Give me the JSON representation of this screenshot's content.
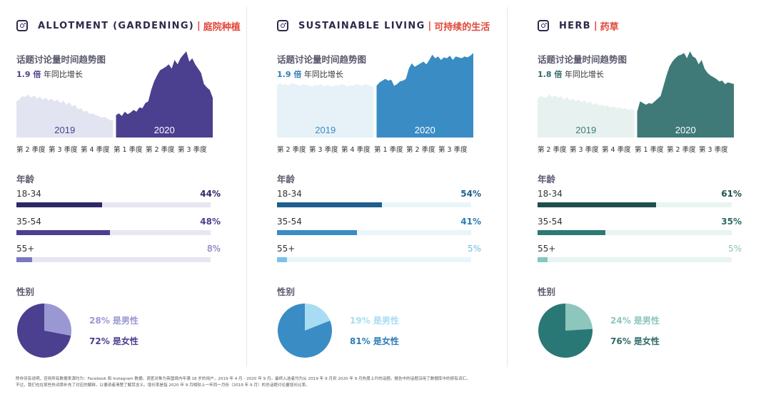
{
  "common": {
    "trend_title": "话题讨论量时间趋势图",
    "growth_suffix": "年同比增长",
    "year_2019": "2019",
    "year_2020": "2020",
    "quarters": [
      "第 2 季度",
      "第 3 季度",
      "第 4 季度",
      "第 1 季度",
      "第 2 季度",
      "第 3 季度"
    ],
    "age_title": "年龄",
    "gender_title": "性别"
  },
  "panels": [
    {
      "title_en": "ALLOTMENT (GARDENING)",
      "separator": "|",
      "title_cn": "庭院种植",
      "growth_value": "1.9 倍",
      "ages": [
        {
          "label": "18-34",
          "pct": "44%",
          "value": 44
        },
        {
          "label": "35-54",
          "pct": "48%",
          "value": 48
        },
        {
          "label": "55+",
          "pct": "8%",
          "value": 8
        }
      ],
      "gender": [
        {
          "label": "28% 是男性",
          "value": 28
        },
        {
          "label": "72% 是女性",
          "value": 72
        }
      ],
      "colors": {
        "area_2019": "#e3e4f1",
        "area_2020": "#4b3f8f",
        "year_2019": "#4b3f8f",
        "year_2020": "#ffffff",
        "growth": "#4b3f8f",
        "bars": [
          "#2e2766",
          "#4b3f8f",
          "#7b78c2"
        ],
        "track": "#e6e7f3",
        "pcts": [
          "#2e2766",
          "#4b3f8f",
          "#6c69b0"
        ],
        "pie_male": "#9a98d3",
        "pie_female": "#4b3f8f",
        "lab_male": "#9a98d3",
        "lab_female": "#4b3f8f"
      }
    },
    {
      "title_en": "SUSTAINABLE LIVING",
      "separator": "|",
      "title_cn": "可持续的生活",
      "growth_value": "1.9 倍",
      "ages": [
        {
          "label": "18-34",
          "pct": "54%",
          "value": 54
        },
        {
          "label": "35-54",
          "pct": "41%",
          "value": 41
        },
        {
          "label": "55+",
          "pct": "5%",
          "value": 5
        }
      ],
      "gender": [
        {
          "label": "19% 是男性",
          "value": 19
        },
        {
          "label": "81% 是女性",
          "value": 81
        }
      ],
      "colors": {
        "area_2019": "#e6f2f8",
        "area_2020": "#3a8cc4",
        "year_2019": "#3a8cc4",
        "year_2020": "#ffffff",
        "growth": "#2d7db5",
        "bars": [
          "#1f5f8d",
          "#3a8cc4",
          "#78c4e8"
        ],
        "track": "#eaf5fa",
        "pcts": [
          "#1f5f8d",
          "#2d7db5",
          "#6cbde3"
        ],
        "pie_male": "#a8dcf2",
        "pie_female": "#3a8cc4",
        "lab_male": "#a8dcf2",
        "lab_female": "#2d7db5"
      }
    },
    {
      "title_en": "HERB",
      "separator": "|",
      "title_cn": "药草",
      "growth_value": "1.8 倍",
      "ages": [
        {
          "label": "18-34",
          "pct": "61%",
          "value": 61
        },
        {
          "label": "35-54",
          "pct": "35%",
          "value": 35
        },
        {
          "label": "55+",
          "pct": "5%",
          "value": 5
        }
      ],
      "gender": [
        {
          "label": "24% 是男性",
          "value": 24
        },
        {
          "label": "76% 是女性",
          "value": 76
        }
      ],
      "colors": {
        "area_2019": "#e7f2f0",
        "area_2020": "#3f7a78",
        "year_2019": "#3f7a78",
        "year_2020": "#ffffff",
        "growth": "#2e6a68",
        "bars": [
          "#1f4f4d",
          "#2e7875",
          "#86c7be"
        ],
        "track": "#e8f4f2",
        "pcts": [
          "#1f4f4d",
          "#2e6a68",
          "#86c7be"
        ],
        "pie_male": "#8cc6bd",
        "pie_female": "#2a7876",
        "lab_male": "#8cc6bd",
        "lab_female": "#2e6a68"
      }
    }
  ],
  "chart_data": [
    {
      "type": "area",
      "title": "ALLOTMENT (GARDENING) | 庭院种植 — 话题讨论量时间趋势图",
      "x_labels": [
        "第 2 季度",
        "第 3 季度",
        "第 4 季度",
        "第 1 季度",
        "第 2 季度",
        "第 3 季度"
      ],
      "series": [
        {
          "name": "2019",
          "values": [
            42,
            44,
            48,
            47,
            50,
            46,
            49,
            45,
            47,
            44,
            46,
            43,
            45,
            42,
            44,
            40,
            43,
            38,
            41,
            36,
            38,
            33,
            34,
            30,
            31,
            27,
            28,
            26,
            25,
            23,
            24,
            22,
            20,
            20
          ]
        },
        {
          "name": "2020",
          "values": [
            26,
            28,
            25,
            30,
            27,
            29,
            32,
            30,
            35,
            34,
            40,
            42,
            55,
            65,
            72,
            78,
            80,
            82,
            85,
            80,
            90,
            85,
            92,
            96,
            100,
            88,
            92,
            85,
            80,
            75,
            62,
            58,
            55,
            46
          ]
        }
      ],
      "ylim": [
        0,
        100
      ]
    },
    {
      "type": "area",
      "title": "SUSTAINABLE LIVING | 可持续的生活 — 话题讨论量时间趋势图",
      "x_labels": [
        "第 2 季度",
        "第 3 季度",
        "第 4 季度",
        "第 1 季度",
        "第 2 季度",
        "第 3 季度"
      ],
      "series": [
        {
          "name": "2019",
          "values": [
            60,
            63,
            61,
            62,
            60,
            63,
            62,
            61,
            60,
            62,
            61,
            60,
            59,
            61,
            60,
            62,
            59,
            61,
            60,
            59,
            61,
            60,
            62,
            61,
            59,
            61,
            60,
            62,
            61,
            60,
            62,
            61,
            60,
            58
          ]
        },
        {
          "name": "2020",
          "values": [
            60,
            64,
            66,
            68,
            66,
            67,
            60,
            62,
            65,
            66,
            68,
            80,
            86,
            82,
            84,
            86,
            88,
            85,
            90,
            96,
            92,
            94,
            90,
            93,
            92,
            95,
            90,
            94,
            93,
            92,
            94,
            93,
            95,
            98
          ]
        }
      ],
      "ylim": [
        0,
        100
      ]
    },
    {
      "type": "area",
      "title": "HERB | 药草 — 话题讨论量时间趋势图",
      "x_labels": [
        "第 2 季度",
        "第 3 季度",
        "第 4 季度",
        "第 1 季度",
        "第 2 季度",
        "第 3 季度"
      ],
      "series": [
        {
          "name": "2019",
          "values": [
            45,
            48,
            47,
            46,
            50,
            47,
            49,
            46,
            48,
            44,
            47,
            43,
            45,
            42,
            44,
            41,
            43,
            40,
            42,
            38,
            40,
            37,
            38,
            36,
            37,
            35,
            36,
            34,
            35,
            33,
            34,
            32,
            33,
            32
          ]
        },
        {
          "name": "2020",
          "values": [
            30,
            42,
            40,
            38,
            40,
            39,
            42,
            45,
            48,
            60,
            72,
            82,
            88,
            92,
            95,
            96,
            98,
            92,
            100,
            94,
            92,
            85,
            90,
            80,
            75,
            72,
            70,
            68,
            65,
            66,
            62,
            64,
            63,
            62
          ]
        }
      ],
      "ylim": [
        0,
        100
      ]
    },
    {
      "type": "bar",
      "title": "年龄",
      "categories": [
        "18-34",
        "35-54",
        "55+"
      ],
      "series": [
        {
          "name": "ALLOTMENT (GARDENING)",
          "values": [
            44,
            48,
            8
          ]
        },
        {
          "name": "SUSTAINABLE LIVING",
          "values": [
            54,
            41,
            5
          ]
        },
        {
          "name": "HERB",
          "values": [
            61,
            35,
            5
          ]
        }
      ],
      "ylim": [
        0,
        100
      ]
    },
    {
      "type": "pie",
      "title": "性别",
      "categories": [
        "男性",
        "女性"
      ],
      "series": [
        {
          "name": "ALLOTMENT (GARDENING)",
          "values": [
            28,
            72
          ]
        },
        {
          "name": "SUSTAINABLE LIVING",
          "values": [
            19,
            81
          ]
        },
        {
          "name": "HERB",
          "values": [
            24,
            76
          ]
        }
      ]
    }
  ],
  "footnote": {
    "line1": "除非另有说明，否则所有数据来源均为：Facebook 和 Instagram 数据。调查对象为英国境内年满 18 岁的用户，2019 年 4 月 - 2020 年 9 月。最终入选者均为从 2019 年 9 月到 2020 年 9 月热度上升的话题。报告中的话题沿用了数据库中的原有词汇。",
    "line2": "不过，我们也在某些热词旁补充了对应的解释，以便读者清楚了解其含义。增长率是指 2020 年 9 月相较上一年同一月份（2019 年 9 月）的总话题讨论量增长比率。"
  }
}
